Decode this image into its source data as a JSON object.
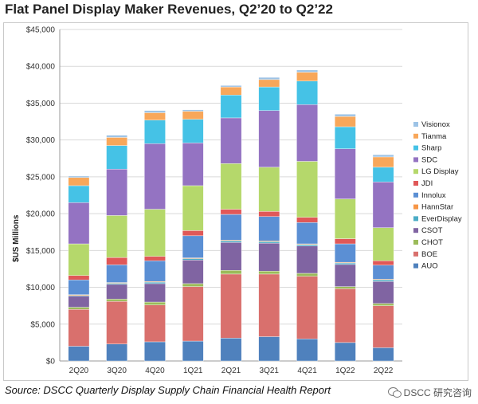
{
  "title": "Flat Panel Display Maker Revenues, Q2’20 to Q2’22",
  "source": "Source: DSCC Quarterly Display Supply Chain Financial Health Report",
  "watermark": "DSCC 研究咨询",
  "chart_data": {
    "type": "bar",
    "stacked": true,
    "categories": [
      "2Q20",
      "3Q20",
      "4Q20",
      "1Q21",
      "2Q21",
      "3Q21",
      "4Q21",
      "1Q22",
      "2Q22"
    ],
    "ylabel": "$US Millions",
    "ylim": [
      0,
      45000
    ],
    "yticks": [
      0,
      5000,
      10000,
      15000,
      20000,
      25000,
      30000,
      35000,
      40000,
      45000
    ],
    "ytick_labels": [
      "$0",
      "$5,000",
      "$10,000",
      "$15,000",
      "$20,000",
      "$25,000",
      "$30,000",
      "$35,000",
      "$40,000",
      "$45,000"
    ],
    "grid": true,
    "legend_position": "right",
    "series": [
      {
        "name": "AUO",
        "color": "#4f81bd",
        "values": [
          2000,
          2300,
          2600,
          2700,
          3100,
          3300,
          3000,
          2500,
          1800
        ]
      },
      {
        "name": "BOE",
        "color": "#d9706d",
        "values": [
          5000,
          5800,
          5000,
          7400,
          8700,
          8500,
          8500,
          7300,
          5700
        ]
      },
      {
        "name": "CHOT",
        "color": "#9bbb59",
        "values": [
          300,
          300,
          400,
          400,
          500,
          400,
          400,
          300,
          300
        ]
      },
      {
        "name": "CSOT",
        "color": "#8064a2",
        "values": [
          1500,
          2000,
          2500,
          3200,
          3800,
          3800,
          3700,
          3000,
          3000
        ]
      },
      {
        "name": "EverDisplay",
        "color": "#4bacc6",
        "values": [
          100,
          150,
          200,
          200,
          200,
          200,
          200,
          200,
          200
        ]
      },
      {
        "name": "HannStar",
        "color": "#f79646",
        "values": [
          100,
          100,
          100,
          100,
          100,
          100,
          100,
          100,
          100
        ]
      },
      {
        "name": "Innolux",
        "color": "#5b8fd4",
        "values": [
          2000,
          2400,
          2800,
          3000,
          3500,
          3300,
          2900,
          2500,
          1900
        ]
      },
      {
        "name": "JDI",
        "color": "#e05858",
        "values": [
          600,
          1000,
          600,
          700,
          700,
          700,
          700,
          700,
          600
        ]
      },
      {
        "name": "LG Display",
        "color": "#b5d86b",
        "values": [
          4300,
          5700,
          6400,
          6100,
          6200,
          6000,
          7600,
          5400,
          4500
        ]
      },
      {
        "name": "SDC",
        "color": "#9473c2",
        "values": [
          5600,
          6300,
          8900,
          5800,
          6200,
          7700,
          7700,
          6800,
          6200
        ]
      },
      {
        "name": "Sharp",
        "color": "#45c2e6",
        "values": [
          2300,
          3200,
          3200,
          3200,
          3100,
          3200,
          3200,
          3000,
          2000
        ]
      },
      {
        "name": "Tianma",
        "color": "#f8a75a",
        "values": [
          1100,
          1100,
          1000,
          1100,
          1100,
          1000,
          1200,
          1400,
          1400
        ]
      },
      {
        "name": "Visionox",
        "color": "#9dc3e6",
        "values": [
          200,
          300,
          300,
          200,
          200,
          300,
          300,
          300,
          300
        ]
      }
    ]
  }
}
